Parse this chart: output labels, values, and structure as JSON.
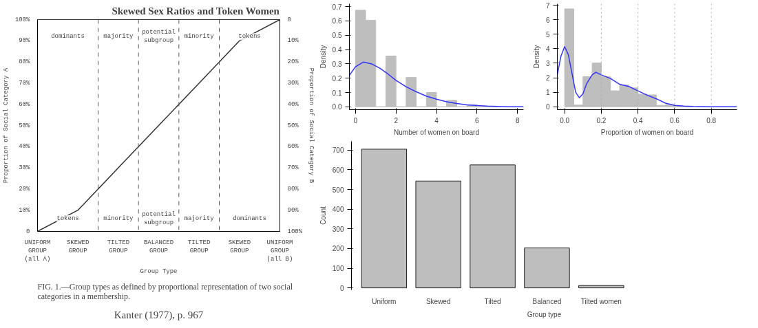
{
  "chart_data": [
    {
      "type": "line",
      "title": "Skewed Sex Ratios and Token Women",
      "xlabel": "Group Type",
      "ylabel": "Proportion of Social Category A",
      "y2label": "Proportion of Social Category B",
      "categories": [
        "UNIFORM\nGROUP\n(all A)",
        "SKEWED\nGROUP",
        "TILTED\nGROUP",
        "BALANCED\nGROUP",
        "TILTED\nGROUP",
        "SKEWED\nGROUP",
        "UNIFORM\nGROUP\n(all B)"
      ],
      "ylim": [
        0,
        100
      ],
      "y2lim": [
        100,
        0
      ],
      "yticks": [
        0,
        {
          "value": 10,
          "label": "10%"
        },
        {
          "value": 20,
          "label": "20%"
        },
        {
          "value": 30,
          "label": "30%"
        },
        {
          "value": 40,
          "label": "40%"
        },
        {
          "value": 50,
          "label": "50%"
        },
        {
          "value": 60,
          "label": "60%"
        },
        {
          "value": 70,
          "label": "70%"
        },
        {
          "value": 80,
          "label": "80%"
        },
        {
          "value": 90,
          "label": "90%"
        },
        {
          "value": 100,
          "label": "100%"
        }
      ],
      "y2ticks": [
        0,
        {
          "value": 10,
          "label": "10%"
        },
        {
          "value": 20,
          "label": "20%"
        },
        {
          "value": 30,
          "label": "30%"
        },
        {
          "value": 40,
          "label": "40%"
        },
        {
          "value": 50,
          "label": "50%"
        },
        {
          "value": 60,
          "label": "60%"
        },
        {
          "value": 70,
          "label": "70%"
        },
        {
          "value": 80,
          "label": "80%"
        },
        {
          "value": 90,
          "label": "90%"
        },
        {
          "value": 100,
          "label": "100%"
        }
      ],
      "series": [
        {
          "color": "#333333",
          "values": [
            0,
            10,
            30,
            50,
            70,
            90,
            100
          ]
        }
      ],
      "annotations": [
        "dominants",
        "majority",
        "potential\nsubgroup",
        "minority",
        "tokens",
        "tokens",
        "minority",
        "potential\nsubgroup",
        "majority",
        "dominants",
        "FIG. 1.—Group types as defined by proportional representation of two social categories in a membership.",
        "Kanter (1977), p. 967"
      ]
    },
    {
      "type": "histogram",
      "ylabel": "Density",
      "xlabel": "Number of women on board",
      "xlim": [
        -0.3,
        8.3
      ],
      "ylim": [
        -0.02,
        0.72
      ],
      "xticks": [
        0,
        2,
        4,
        6,
        8
      ],
      "yticks": [
        {
          "value": 0,
          "label": "0.0"
        },
        0.1,
        0.2,
        0.3,
        0.4,
        0.5,
        0.6,
        0.7
      ],
      "series": [
        {
          "type": "histogram",
          "color": "#bebebe",
          "bins": [
            0,
            0.5,
            1,
            1.5,
            2,
            2.5,
            3,
            3.5,
            4,
            4.5,
            5,
            5.5,
            6,
            6.5,
            7
          ],
          "values": [
            0.675,
            0.605,
            0,
            0.355,
            0,
            0.205,
            0,
            0.1,
            0,
            0.045,
            0,
            0.015,
            0,
            0.003
          ]
        },
        {
          "type": "line",
          "color": "#3333ff",
          "x": [
            -0.3,
            0,
            0.4,
            0.8,
            1.2,
            1.6,
            2,
            2.5,
            3,
            3.5,
            4,
            4.5,
            5,
            5.5,
            6,
            6.5,
            7,
            7.5,
            8.3
          ],
          "values": [
            0.22,
            0.28,
            0.313,
            0.3,
            0.27,
            0.23,
            0.185,
            0.14,
            0.105,
            0.075,
            0.053,
            0.035,
            0.023,
            0.014,
            0.009,
            0.005,
            0.003,
            0.001,
            0
          ]
        }
      ]
    },
    {
      "type": "histogram",
      "ylabel": "Density",
      "xlabel": "Proportion of women on board",
      "xlim": [
        -0.04,
        0.94
      ],
      "ylim": [
        -0.2,
        7.1
      ],
      "xticks": [
        {
          "value": 0,
          "label": "0.0"
        },
        0.2,
        0.4,
        0.6,
        0.8
      ],
      "yticks": [
        0,
        1,
        2,
        3,
        4,
        5,
        6,
        7
      ],
      "ref_lines": [
        {
          "axis": "x",
          "value": 0.2,
          "line_style": "dotted",
          "color": "#aaaaaa"
        },
        {
          "axis": "x",
          "value": 0.4,
          "line_style": "dotted",
          "color": "#aaaaaa"
        },
        {
          "axis": "x",
          "value": 0.6,
          "line_style": "dotted",
          "color": "#aaaaaa"
        },
        {
          "axis": "x",
          "value": 0.8,
          "line_style": "dotted",
          "color": "#aaaaaa"
        }
      ],
      "series": [
        {
          "type": "histogram",
          "color": "#bebebe",
          "bins": [
            0,
            0.05,
            0.1,
            0.15,
            0.2,
            0.25,
            0.3,
            0.35,
            0.4,
            0.45,
            0.5,
            0.55,
            0.6,
            0.65,
            0.7
          ],
          "values": [
            6.75,
            0.12,
            2.08,
            3.02,
            2.07,
            1.1,
            1.5,
            1.3,
            0.87,
            0.82,
            0.1,
            0.15,
            0.05,
            0.03
          ]
        },
        {
          "type": "line",
          "color": "#3333ff",
          "x": [
            -0.04,
            -0.02,
            0,
            0.02,
            0.04,
            0.06,
            0.08,
            0.1,
            0.12,
            0.15,
            0.17,
            0.2,
            0.25,
            0.3,
            0.35,
            0.4,
            0.45,
            0.5,
            0.55,
            0.6,
            0.65,
            0.7,
            0.8,
            0.94
          ],
          "values": [
            2.2,
            3.5,
            4.15,
            3.6,
            2.3,
            1.0,
            0.62,
            0.9,
            1.6,
            2.2,
            2.38,
            2.2,
            1.95,
            1.55,
            1.4,
            1.1,
            0.8,
            0.55,
            0.25,
            0.1,
            0.05,
            0.02,
            0,
            0
          ]
        }
      ]
    },
    {
      "type": "bar",
      "ylabel": "Count",
      "xlabel": "Group type",
      "categories": [
        "Uniform",
        "Skewed",
        "Tilted",
        "Balanced",
        "Tilted women"
      ],
      "ylim": [
        -10,
        745
      ],
      "yticks": [
        0,
        100,
        200,
        300,
        400,
        500,
        600,
        700
      ],
      "series": [
        {
          "color": "#bebebe",
          "values": [
            705,
            543,
            625,
            203,
            12
          ]
        }
      ]
    }
  ]
}
